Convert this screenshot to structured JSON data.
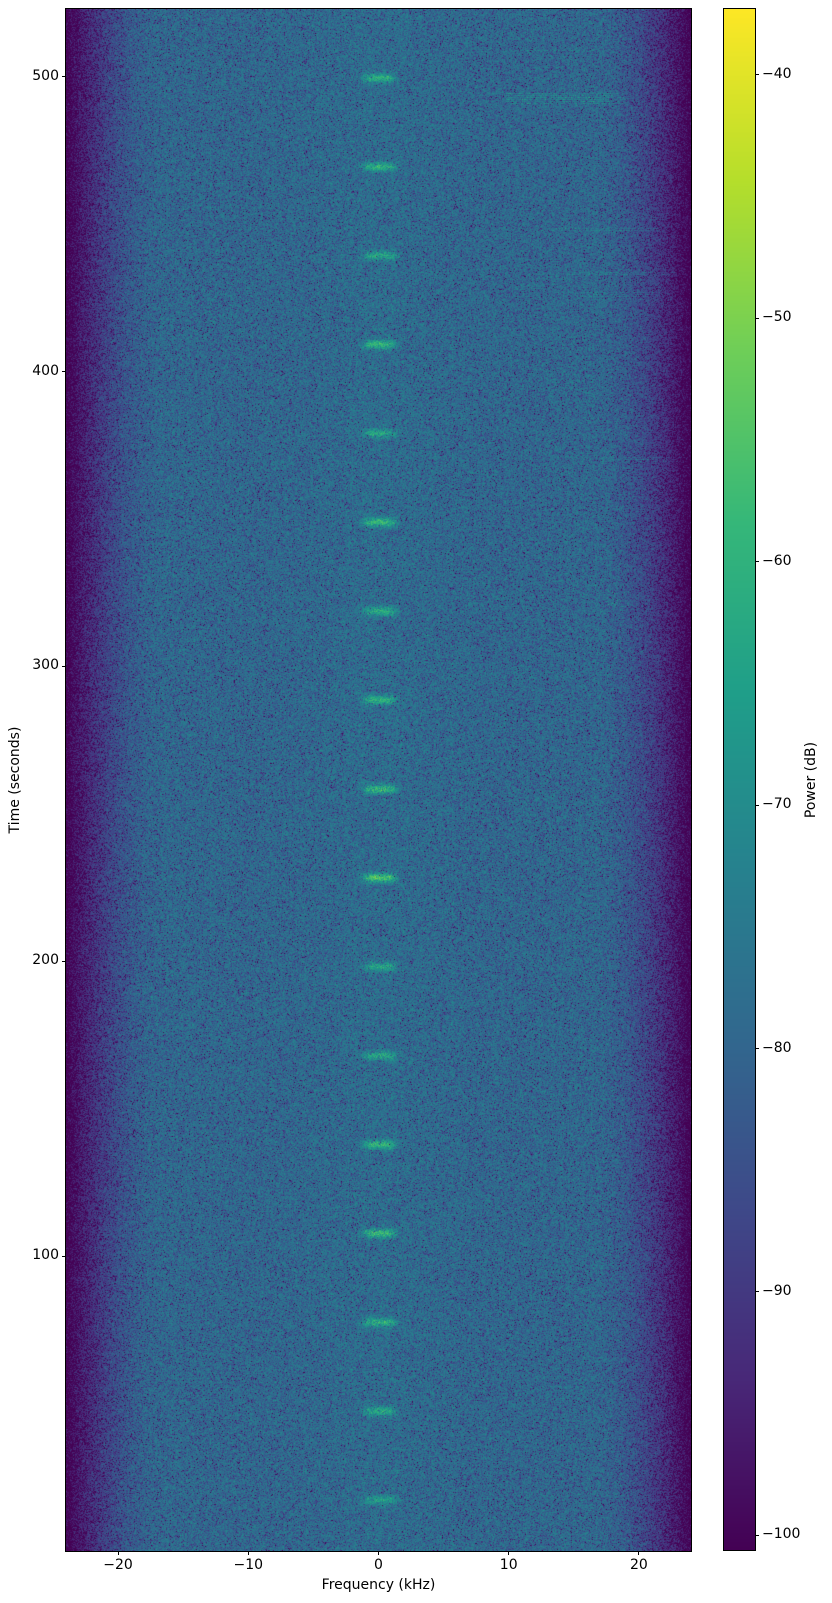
{
  "figure": {
    "background": "#ffffff",
    "text_color": "#000000"
  },
  "chart_data": {
    "type": "heatmap",
    "subtype": "spectrogram",
    "title": "",
    "xlabel": "Frequency (kHz)",
    "ylabel": "Time (seconds)",
    "colorbar_label": "Power (dB)",
    "xlim": [
      -24,
      24
    ],
    "ylim": [
      0,
      523
    ],
    "clim": [
      -100.6,
      -37.3
    ],
    "x_ticks": [
      -20,
      -10,
      0,
      10,
      20
    ],
    "x_tick_labels": [
      "−20",
      "−10",
      "0",
      "10",
      "20"
    ],
    "y_ticks": [
      100,
      200,
      300,
      400,
      500
    ],
    "y_tick_labels": [
      "100",
      "200",
      "300",
      "400",
      "500"
    ],
    "colorbar_ticks": [
      -40,
      -50,
      -60,
      -70,
      -80,
      -90,
      -100
    ],
    "colorbar_tick_labels": [
      "−40",
      "−50",
      "−60",
      "−70",
      "−80",
      "−90",
      "−100"
    ],
    "colormap": "viridis",
    "grid": false,
    "legend": "none",
    "noise_floor_db": -77.5,
    "center_bump": {
      "amp_db": 1.2,
      "sigma_khz": 5
    },
    "edge_rolloff": {
      "start_khz": 16.5,
      "span_khz": 7.5,
      "depth_db": 23,
      "power": 1.8
    },
    "pulses": {
      "center_khz": 0.1,
      "width_khz": 1.3,
      "duration_s": 1.55,
      "period_s": 30.15,
      "events": [
        {
          "t": 17.3,
          "amp_db": 12
        },
        {
          "t": 47.4,
          "amp_db": 15
        },
        {
          "t": 77.5,
          "amp_db": 17
        },
        {
          "t": 107.7,
          "amp_db": 20
        },
        {
          "t": 137.8,
          "amp_db": 18
        },
        {
          "t": 168.0,
          "amp_db": 15
        },
        {
          "t": 198.1,
          "amp_db": 14
        },
        {
          "t": 228.3,
          "amp_db": 23
        },
        {
          "t": 258.4,
          "amp_db": 20
        },
        {
          "t": 288.6,
          "amp_db": 17
        },
        {
          "t": 318.7,
          "amp_db": 16
        },
        {
          "t": 348.9,
          "amp_db": 19
        },
        {
          "t": 379.0,
          "amp_db": 14
        },
        {
          "t": 409.2,
          "amp_db": 18
        },
        {
          "t": 439.3,
          "amp_db": 16
        },
        {
          "t": 469.5,
          "amp_db": 17
        },
        {
          "t": 499.6,
          "amp_db": 16
        }
      ]
    },
    "streaks": [
      {
        "t": 509.0,
        "f1": 10.6,
        "f2": 16.5,
        "lines": 1,
        "amp_db": 6,
        "speckle": false
      },
      {
        "t": 494.5,
        "f1": 9.8,
        "f2": 18.8,
        "lines": 6,
        "amp_db": 8,
        "speckle": false
      },
      {
        "t": 448.7,
        "f1": 12.9,
        "f2": 21.6,
        "lines": 2,
        "amp_db": 6,
        "speckle": false
      },
      {
        "t": 433.5,
        "f1": 14.9,
        "f2": 22.9,
        "lines": 2,
        "amp_db": 6,
        "speckle": false
      },
      {
        "t": 427.0,
        "f1": 15.7,
        "f2": 21.8,
        "lines": 3,
        "amp_db": 6,
        "speckle": false
      },
      {
        "t": 371.0,
        "f1": 17.0,
        "f2": 23.2,
        "lines": 3,
        "amp_db": 5,
        "speckle": false
      },
      {
        "t": 323.0,
        "f1": 17.6,
        "f2": 19.2,
        "lines": 1,
        "amp_db": 9,
        "speckle": true
      }
    ],
    "vertical_lines": [
      {
        "f": -12.9,
        "amp_db": 2.2
      },
      {
        "f": 5.65,
        "amp_db": 2.2
      }
    ],
    "viridis_stops": [
      "#440154",
      "#482878",
      "#3e4989",
      "#31688e",
      "#26828e",
      "#1f9e89",
      "#35b779",
      "#6ece58",
      "#b5de2b",
      "#fde725"
    ]
  }
}
